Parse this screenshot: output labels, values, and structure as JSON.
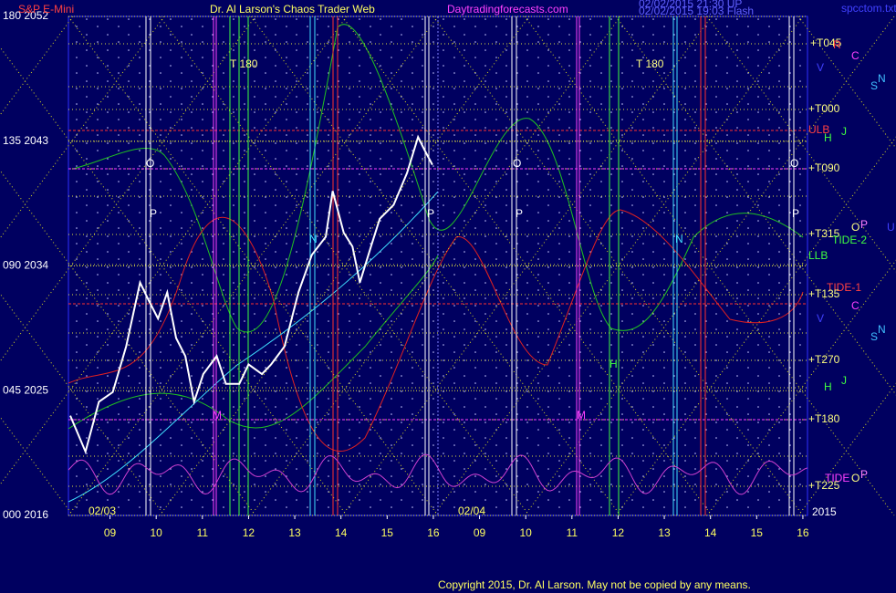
{
  "chart_data": {
    "type": "line",
    "subtitle": "S&P E-Mini",
    "title": "Dr. Al Larson's Chaos Trader Web",
    "source": "Daytradingforecasts.com",
    "timestamps": [
      "02/02/2015 21:30 UP",
      "02/02/2015 19:03 Flash"
    ],
    "file": "spcctom.txt",
    "copyright": "Copyright 2015, Dr. Al Larson. May not be copied by any means.",
    "day_labels": [
      "02/03",
      "02/04"
    ],
    "xlim": [
      8.1,
      24.1
    ],
    "xticks": [
      {
        "value": 9,
        "label": "09"
      },
      10,
      11,
      12,
      13,
      14,
      15,
      16,
      {
        "value": 17,
        "label": "09"
      },
      {
        "value": 18,
        "label": "10"
      },
      {
        "value": 19,
        "label": "11"
      },
      {
        "value": 20,
        "label": "12"
      },
      {
        "value": 21,
        "label": "13"
      },
      {
        "value": 22,
        "label": "14"
      },
      {
        "value": 23,
        "label": "15"
      },
      {
        "value": 24,
        "label": "16"
      }
    ],
    "ylim": [
      2016,
      2052
    ],
    "yticks": [
      {
        "value": 2016,
        "label": "000 2016"
      },
      {
        "value": 2025,
        "label": "045 2025"
      },
      {
        "value": 2034,
        "label": "090 2034"
      },
      {
        "value": 2043,
        "label": "135 2043"
      },
      {
        "value": 2052,
        "label": "180 2052"
      }
    ],
    "series": [
      {
        "name": "S&P E-Mini",
        "color": "#ffffff",
        "x": [
          8.14,
          8.47,
          8.76,
          9.06,
          9.35,
          9.65,
          9.84,
          10.04,
          10.24,
          10.43,
          10.63,
          10.82,
          11.02,
          11.31,
          11.51,
          11.8,
          12.0,
          12.29,
          12.49,
          12.78,
          13.08,
          13.37,
          13.67,
          13.82,
          14.06,
          14.25,
          14.41,
          14.65,
          14.84,
          15.14,
          15.43,
          15.67,
          15.82,
          15.98
        ],
        "values": [
          2023.2,
          2020.6,
          2024.2,
          2024.9,
          2028.2,
          2032.8,
          2031.5,
          2030.2,
          2032.1,
          2028.8,
          2027.5,
          2024.2,
          2026.2,
          2027.5,
          2025.5,
          2025.5,
          2026.9,
          2026.2,
          2026.9,
          2028.2,
          2032.1,
          2034.8,
          2036.1,
          2039.4,
          2036.4,
          2035.4,
          2032.8,
          2035.4,
          2037.4,
          2038.4,
          2040.7,
          2043.3,
          2042.3,
          2041.3
        ]
      }
    ],
    "right_labels": [
      "+T045",
      "R",
      "C",
      "V",
      "N",
      "S",
      "+T000",
      "ULB",
      "J",
      "H",
      "+T090",
      "O",
      "P",
      "U",
      "+T315",
      "TIDE-2",
      "LLB",
      "TIDE-1",
      "+T135",
      "C",
      "V",
      "N",
      "S",
      "+T270",
      "J",
      "H",
      "+T180",
      "TIDE",
      "O",
      "P",
      "+T225",
      "2015"
    ],
    "annotations": [
      "T   180",
      "T   180",
      "O",
      "O",
      "O",
      "P",
      "P",
      "P",
      "P",
      "N",
      "N",
      "M",
      "M",
      "H"
    ]
  }
}
